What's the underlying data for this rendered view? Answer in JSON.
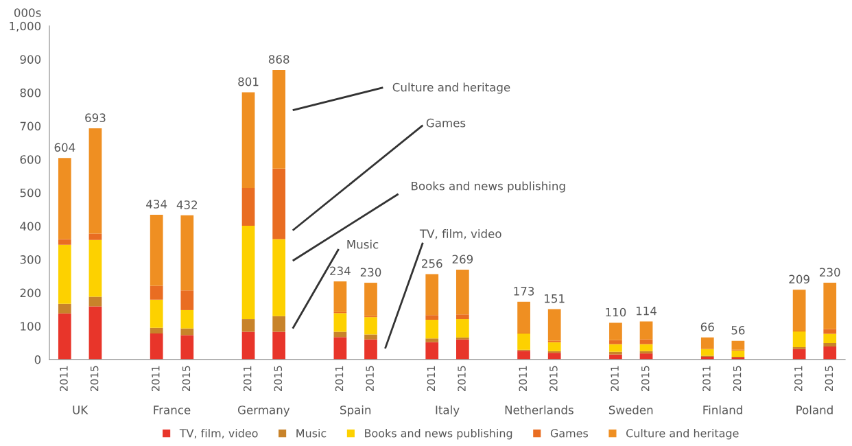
{
  "chart_data": {
    "type": "bar",
    "stacked": true,
    "ylabel": "000s",
    "categories": [
      "2011",
      "2015",
      null,
      "2011",
      "2015",
      null,
      "2011",
      "2015",
      null,
      "2011",
      "2015",
      null,
      "2011",
      "2015",
      null,
      "2011",
      "2015",
      null,
      "2011",
      "2015",
      null,
      "2011",
      "2015",
      null,
      "2011",
      "2015"
    ],
    "series": [
      {
        "name": "TV, film, video",
        "color": "#e8352a",
        "values": [
          138,
          159,
          null,
          78,
          73,
          null,
          83,
          83,
          null,
          67,
          60,
          null,
          52,
          60,
          null,
          26,
          20,
          null,
          15,
          18,
          null,
          8,
          6,
          null,
          31,
          39
        ]
      },
      {
        "name": "Music",
        "color": "#c8832a",
        "values": [
          29,
          29,
          null,
          17,
          20,
          null,
          38,
          47,
          null,
          16,
          15,
          null,
          11,
          6,
          null,
          3,
          5,
          null,
          8,
          7,
          null,
          3,
          2,
          null,
          6,
          10
        ]
      },
      {
        "name": "Books and news publishing",
        "color": "#fdd100",
        "values": [
          177,
          170,
          null,
          84,
          55,
          null,
          280,
          231,
          null,
          56,
          52,
          null,
          56,
          55,
          null,
          49,
          27,
          null,
          23,
          21,
          null,
          20,
          19,
          null,
          47,
          28
        ]
      },
      {
        "name": "Games",
        "color": "#e96d22",
        "values": [
          17,
          19,
          null,
          42,
          59,
          null,
          113,
          211,
          null,
          3,
          3,
          null,
          14,
          14,
          null,
          2,
          4,
          null,
          12,
          14,
          null,
          1,
          2,
          null,
          2,
          14
        ]
      },
      {
        "name": "Culture and heritage",
        "color": "#ef8f22",
        "values": [
          243,
          316,
          null,
          213,
          225,
          null,
          287,
          296,
          null,
          92,
          100,
          null,
          123,
          134,
          null,
          93,
          95,
          null,
          52,
          54,
          null,
          34,
          27,
          null,
          123,
          139
        ]
      }
    ],
    "totals": [
      "604",
      "693",
      null,
      "434",
      "432",
      null,
      "801",
      "868",
      null,
      "234",
      "230",
      null,
      "256",
      "269",
      null,
      "173",
      "151",
      null,
      "110",
      "114",
      null,
      "66",
      "56",
      null,
      "209",
      "230"
    ],
    "ylim": [
      0,
      1000
    ],
    "yticks": [
      0,
      100,
      200,
      300,
      400,
      500,
      600,
      700,
      800,
      900,
      {
        "value": 1000,
        "label": "1,000"
      }
    ],
    "grid": false,
    "legend": "bottom",
    "annotations": [
      "UK",
      "France",
      "Germany",
      "Spain",
      "Italy",
      "Netherlands",
      "Sweden",
      "Finland",
      "Poland",
      "Culture and heritage",
      "Games",
      "Books and news publishing",
      "Music",
      "TV, film, video"
    ]
  }
}
